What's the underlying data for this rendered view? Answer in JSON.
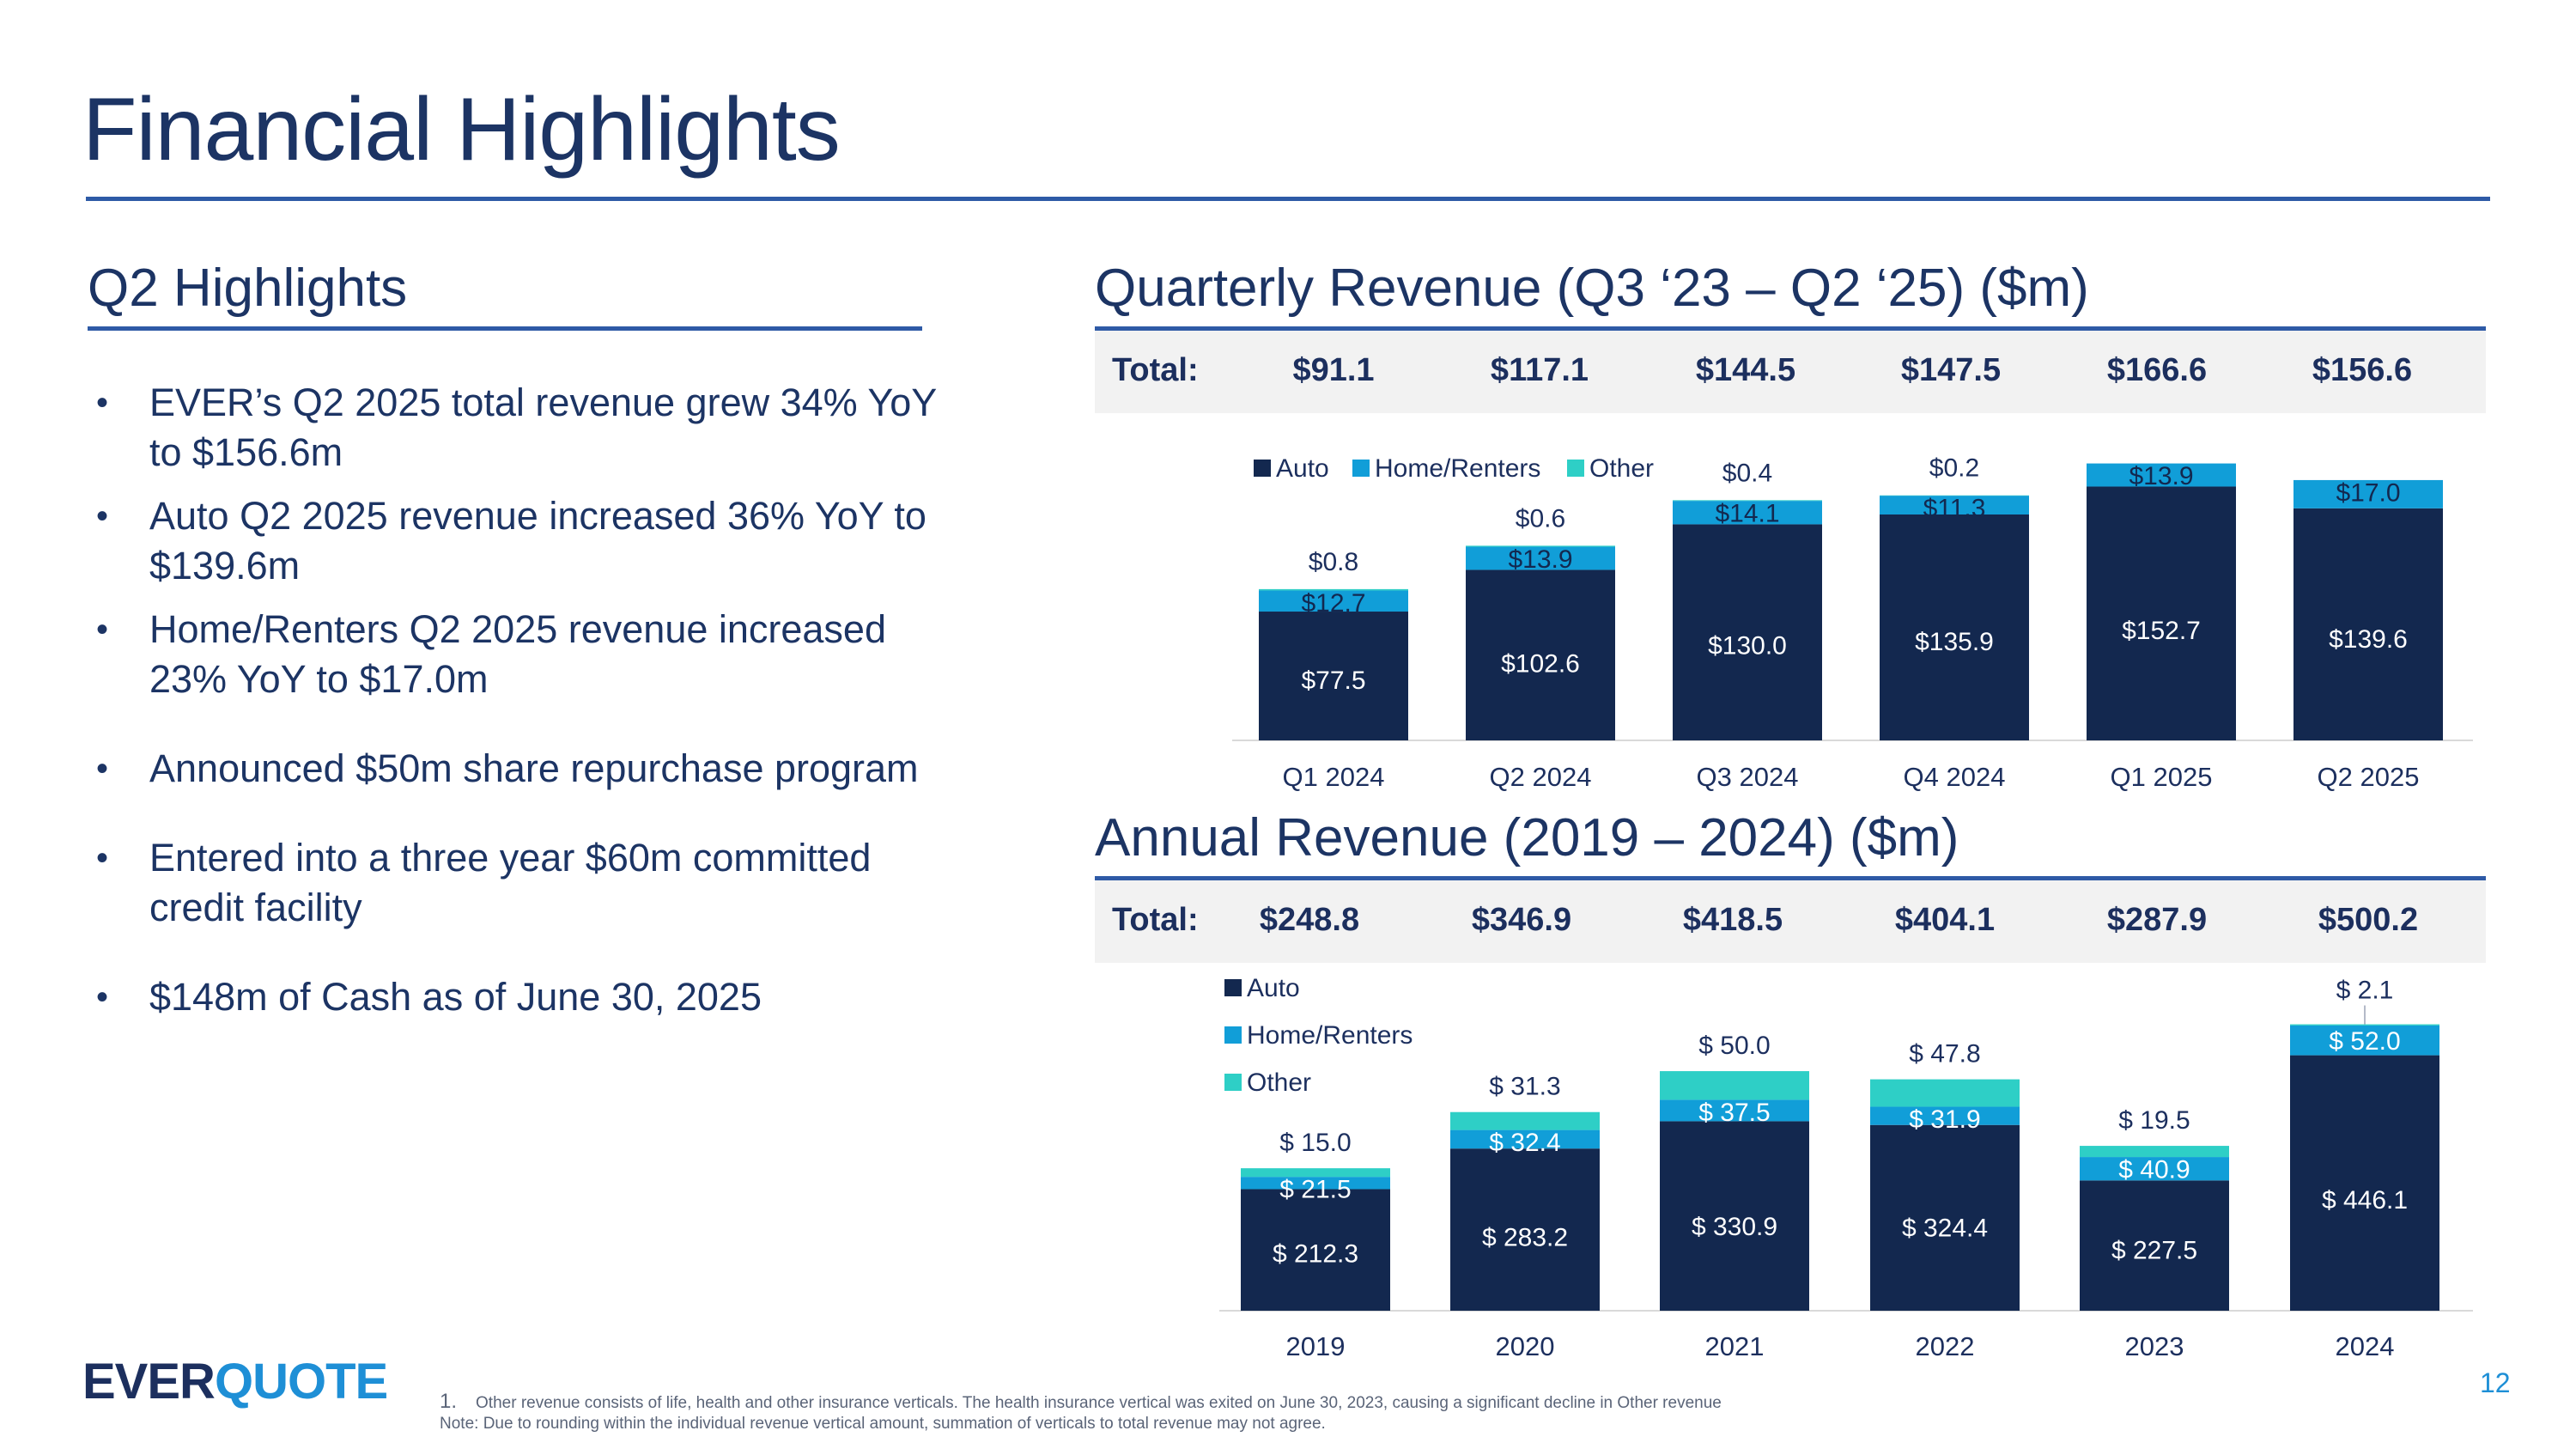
{
  "page_title": "Financial Highlights",
  "highlights": {
    "heading": "Q2 Highlights",
    "bullets": [
      "EVER’s Q2 2025 total revenue grew 34% YoY to $156.6m",
      "Auto Q2 2025 revenue increased 36% YoY  to $139.6m",
      "Home/Renters Q2 2025 revenue increased 23% YoY to $17.0m",
      "Announced $50m share repurchase program",
      "Entered into a three year $60m committed credit facility",
      "$148m of Cash as of June 30, 2025"
    ]
  },
  "quarterly": {
    "heading": "Quarterly Revenue (Q3 ‘23 – Q2 ‘25) ($m)",
    "totals_label": "Total:",
    "totals": [
      "$91.1",
      "$117.1",
      "$144.5",
      "$147.5",
      "$166.6",
      "$156.6"
    ]
  },
  "annual": {
    "heading": "Annual Revenue (2019 – 2024) ($m)",
    "totals_label": "Total:",
    "totals": [
      "$248.8",
      "$346.9",
      "$418.5",
      "$404.1",
      "$287.9",
      "$500.2"
    ]
  },
  "colors": {
    "auto": "#13284f",
    "home": "#119ed8",
    "other": "#2ecfc6",
    "accent": "#2e5aa6"
  },
  "chart_data": [
    {
      "type": "bar",
      "stacked": true,
      "title": "Quarterly Revenue (Q3 ‘23 – Q2 ‘25) ($m)",
      "categories": [
        "Q1 2024",
        "Q2 2024",
        "Q3 2024",
        "Q4 2024",
        "Q1 2025",
        "Q2 2025"
      ],
      "series": [
        {
          "name": "Auto",
          "values": [
            77.5,
            102.6,
            130.0,
            135.9,
            152.7,
            139.6
          ],
          "labels": [
            "$77.5",
            "$102.6",
            "$130.0",
            "$135.9",
            "$152.7",
            "$139.6"
          ]
        },
        {
          "name": "Home/Renters",
          "values": [
            12.7,
            13.9,
            14.1,
            11.3,
            13.9,
            17.0
          ],
          "labels": [
            "$12.7",
            "$13.9",
            "$14.1",
            "$11.3",
            "$13.9",
            "$17.0"
          ]
        },
        {
          "name": "Other",
          "values": [
            0.8,
            0.6,
            0.4,
            0.2,
            0,
            0
          ],
          "labels": [
            "$0.8",
            "$0.6",
            "$0.4",
            "$0.2",
            "",
            ""
          ]
        }
      ],
      "legend": "top-left",
      "ylim": [
        0,
        170
      ],
      "xlabel": "",
      "ylabel": ""
    },
    {
      "type": "bar",
      "stacked": true,
      "title": "Annual Revenue (2019 – 2024) ($m)",
      "categories": [
        "2019",
        "2020",
        "2021",
        "2022",
        "2023",
        "2024"
      ],
      "series": [
        {
          "name": "Auto",
          "values": [
            212.3,
            283.2,
            330.9,
            324.4,
            227.5,
            446.1
          ],
          "labels": [
            "$ 212.3",
            "$ 283.2",
            "$ 330.9",
            "$ 324.4",
            "$ 227.5",
            "$ 446.1"
          ]
        },
        {
          "name": "Home/Renters",
          "values": [
            21.5,
            32.4,
            37.5,
            31.9,
            40.9,
            52.0
          ],
          "labels": [
            "$ 21.5",
            "$ 32.4",
            "$ 37.5",
            "$ 31.9",
            "$ 40.9",
            "$ 52.0"
          ]
        },
        {
          "name": "Other",
          "values": [
            15.0,
            31.3,
            50.0,
            47.8,
            19.5,
            2.1
          ],
          "labels": [
            "$ 15.0",
            "$ 31.3",
            "$ 50.0",
            "$ 47.8",
            "$ 19.5",
            "$ 2.1"
          ]
        }
      ],
      "legend": "top-left",
      "ylim": [
        0,
        525
      ],
      "xlabel": "",
      "ylabel": ""
    }
  ],
  "footnotes": {
    "note1_number": "1.",
    "note1": "Other revenue consists of life, health and other insurance verticals. The health insurance vertical was exited on June 30, 2023, causing a significant decline in Other revenue",
    "note2": "Note: Due to rounding within the individual revenue vertical amount, summation of verticals to total revenue may not agree."
  },
  "logo": {
    "part1": "EVER",
    "part2": "QUOTE"
  },
  "page_number": "12"
}
